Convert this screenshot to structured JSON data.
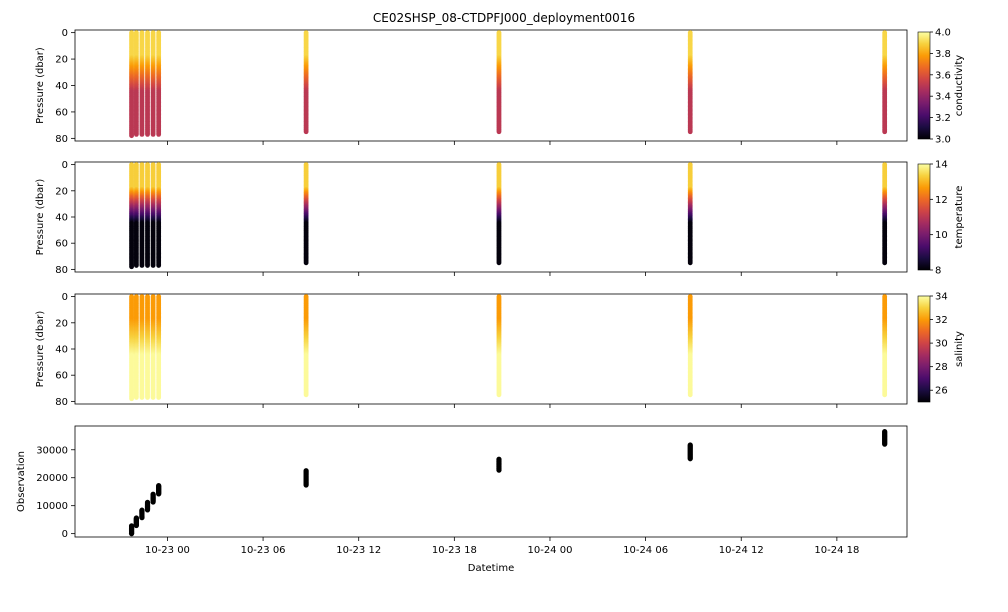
{
  "title": "CE02SHSP_08-CTDPFJ000_deployment0016",
  "xlabel": "Datetime",
  "x_ticks": [
    "10-23 00",
    "10-23 06",
    "10-23 12",
    "10-23 18",
    "10-24 00",
    "10-24 06",
    "10-24 12",
    "10-24 18"
  ],
  "colormap_stops": [
    "#000004",
    "#1b0c41",
    "#4a0c6b",
    "#781c6d",
    "#a52c60",
    "#cf4446",
    "#ed6925",
    "#fb9b06",
    "#f7d13d",
    "#fcffa4"
  ],
  "chart_data": [
    {
      "type": "scatter",
      "id": "conductivity",
      "ylabel": "Pressure (dbar)",
      "y_ticks": [
        0,
        20,
        40,
        60,
        80
      ],
      "ylim": [
        82,
        -2
      ],
      "colorbar": {
        "label": "conductivity",
        "range": [
          3.0,
          4.0
        ],
        "ticks": [
          "3.0",
          "3.2",
          "3.4",
          "3.6",
          "3.8",
          "4.0"
        ]
      },
      "x_unit": "hours since 10-23 00",
      "profiles": [
        {
          "x": -2.25,
          "max_depth": 78,
          "surface_value": 3.9,
          "deep_value": 3.5
        },
        {
          "x": -1.95,
          "max_depth": 77,
          "surface_value": 3.9,
          "deep_value": 3.5
        },
        {
          "x": -1.6,
          "max_depth": 77,
          "surface_value": 3.9,
          "deep_value": 3.5
        },
        {
          "x": -1.25,
          "max_depth": 77,
          "surface_value": 3.9,
          "deep_value": 3.5
        },
        {
          "x": -0.9,
          "max_depth": 77,
          "surface_value": 3.9,
          "deep_value": 3.5
        },
        {
          "x": -0.55,
          "max_depth": 77,
          "surface_value": 3.9,
          "deep_value": 3.5
        },
        {
          "x": 8.7,
          "max_depth": 75,
          "surface_value": 3.9,
          "deep_value": 3.5
        },
        {
          "x": 20.8,
          "max_depth": 75,
          "surface_value": 3.9,
          "deep_value": 3.5
        },
        {
          "x": 32.8,
          "max_depth": 75,
          "surface_value": 3.9,
          "deep_value": 3.5
        },
        {
          "x": 45.0,
          "max_depth": 75,
          "surface_value": 3.9,
          "deep_value": 3.5
        }
      ]
    },
    {
      "type": "scatter",
      "id": "temperature",
      "ylabel": "Pressure (dbar)",
      "y_ticks": [
        0,
        20,
        40,
        60,
        80
      ],
      "ylim": [
        82,
        -2
      ],
      "colorbar": {
        "label": "temperature",
        "range": [
          8,
          14
        ],
        "ticks": [
          "8",
          "10",
          "12",
          "14"
        ]
      },
      "x_unit": "hours since 10-23 00",
      "profiles": [
        {
          "x": -2.25,
          "max_depth": 78,
          "surface_value": 13.3,
          "deep_value": 8.1
        },
        {
          "x": -1.95,
          "max_depth": 77,
          "surface_value": 13.3,
          "deep_value": 8.1
        },
        {
          "x": -1.6,
          "max_depth": 77,
          "surface_value": 13.3,
          "deep_value": 8.1
        },
        {
          "x": -1.25,
          "max_depth": 77,
          "surface_value": 13.3,
          "deep_value": 8.1
        },
        {
          "x": -0.9,
          "max_depth": 77,
          "surface_value": 13.3,
          "deep_value": 8.1
        },
        {
          "x": -0.55,
          "max_depth": 77,
          "surface_value": 13.3,
          "deep_value": 8.1
        },
        {
          "x": 8.7,
          "max_depth": 75,
          "surface_value": 13.3,
          "deep_value": 8.1
        },
        {
          "x": 20.8,
          "max_depth": 75,
          "surface_value": 13.3,
          "deep_value": 8.1
        },
        {
          "x": 32.8,
          "max_depth": 75,
          "surface_value": 13.3,
          "deep_value": 8.1
        },
        {
          "x": 45.0,
          "max_depth": 75,
          "surface_value": 13.3,
          "deep_value": 8.1
        }
      ]
    },
    {
      "type": "scatter",
      "id": "salinity",
      "ylabel": "Pressure (dbar)",
      "y_ticks": [
        0,
        20,
        40,
        60,
        80
      ],
      "ylim": [
        82,
        -2
      ],
      "colorbar": {
        "label": "salinity",
        "range": [
          25,
          34
        ],
        "ticks": [
          "26",
          "28",
          "30",
          "32",
          "34"
        ]
      },
      "x_unit": "hours since 10-23 00",
      "profiles": [
        {
          "x": -2.25,
          "max_depth": 78,
          "surface_value": 32.0,
          "deep_value": 33.9
        },
        {
          "x": -1.95,
          "max_depth": 77,
          "surface_value": 32.0,
          "deep_value": 33.9
        },
        {
          "x": -1.6,
          "max_depth": 77,
          "surface_value": 32.0,
          "deep_value": 33.9
        },
        {
          "x": -1.25,
          "max_depth": 77,
          "surface_value": 32.0,
          "deep_value": 33.9
        },
        {
          "x": -0.9,
          "max_depth": 77,
          "surface_value": 32.0,
          "deep_value": 33.9
        },
        {
          "x": -0.55,
          "max_depth": 77,
          "surface_value": 32.0,
          "deep_value": 33.9
        },
        {
          "x": 8.7,
          "max_depth": 75,
          "surface_value": 32.0,
          "deep_value": 33.9
        },
        {
          "x": 20.8,
          "max_depth": 75,
          "surface_value": 32.0,
          "deep_value": 33.9
        },
        {
          "x": 32.8,
          "max_depth": 75,
          "surface_value": 32.0,
          "deep_value": 33.9
        },
        {
          "x": 45.0,
          "max_depth": 75,
          "surface_value": 32.0,
          "deep_value": 33.9
        }
      ]
    },
    {
      "type": "scatter",
      "id": "observation",
      "ylabel": "Observation",
      "y_ticks": [
        0,
        10000,
        20000,
        30000
      ],
      "ylim": [
        -1200,
        38500
      ],
      "x_unit": "hours since 10-23 00",
      "segments": [
        {
          "x": -2.25,
          "y_start": 0,
          "y_end": 2800
        },
        {
          "x": -1.95,
          "y_start": 2900,
          "y_end": 5600
        },
        {
          "x": -1.6,
          "y_start": 5700,
          "y_end": 8400
        },
        {
          "x": -1.25,
          "y_start": 8500,
          "y_end": 11200
        },
        {
          "x": -0.9,
          "y_start": 11300,
          "y_end": 14100
        },
        {
          "x": -0.55,
          "y_start": 14200,
          "y_end": 17200
        },
        {
          "x": 8.7,
          "y_start": 17400,
          "y_end": 22500
        },
        {
          "x": 20.8,
          "y_start": 22700,
          "y_end": 26600
        },
        {
          "x": 32.8,
          "y_start": 26800,
          "y_end": 31700
        },
        {
          "x": 45.0,
          "y_start": 32000,
          "y_end": 36500
        }
      ]
    }
  ]
}
